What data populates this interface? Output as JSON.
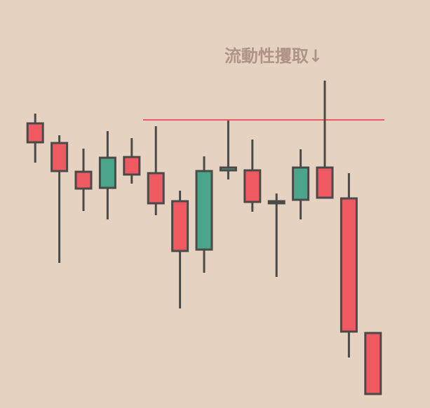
{
  "chart_data": {
    "type": "candlestick",
    "annotation": "流動性攫取↓",
    "open": [
      406,
      378,
      337,
      314,
      358,
      335,
      295,
      226,
      339,
      339,
      295,
      297,
      343,
      299,
      107
    ],
    "high": [
      420,
      389,
      370,
      395,
      385,
      402,
      310,
      359,
      410,
      383,
      306,
      369,
      467,
      335,
      107
    ],
    "low": [
      350,
      207,
      281,
      269,
      320,
      275,
      142,
      193,
      326,
      280,
      187,
      269,
      299,
      72,
      20
    ],
    "close": [
      379,
      338,
      313,
      357,
      333,
      292,
      224,
      338,
      343,
      294,
      292,
      343,
      300,
      109,
      20
    ],
    "up_color": "#4aa58a",
    "down_color": "#ef5a62",
    "level": 411,
    "level_color": "#ef5a62",
    "ylim": [
      0,
      582
    ]
  }
}
